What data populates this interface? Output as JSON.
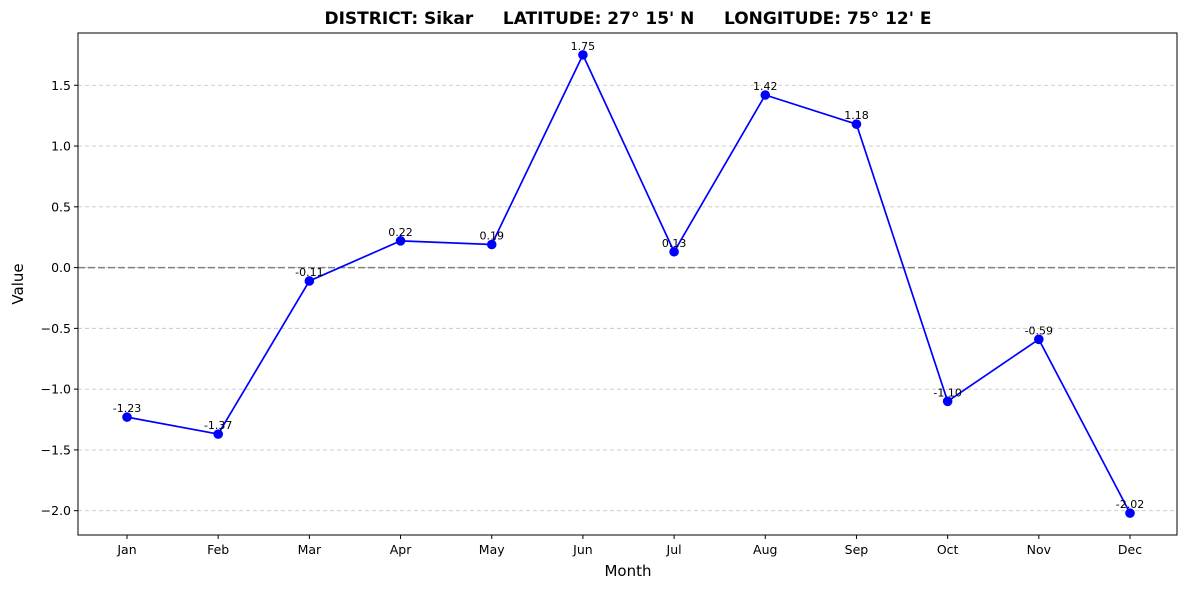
{
  "chart_data": {
    "type": "line",
    "title": "DISTRICT: Sikar     LATITUDE: 27° 15' N     LONGITUDE: 75° 12' E",
    "xlabel": "Month",
    "ylabel": "Value",
    "categories": [
      "Jan",
      "Feb",
      "Mar",
      "Apr",
      "May",
      "Jun",
      "Jul",
      "Aug",
      "Sep",
      "Oct",
      "Nov",
      "Dec"
    ],
    "values": [
      -1.23,
      -1.37,
      -0.11,
      0.22,
      0.19,
      1.75,
      0.13,
      1.42,
      1.18,
      -1.1,
      -0.59,
      -2.02
    ],
    "data_labels": [
      "-1.23",
      "-1.37",
      "-0.11",
      "0.22",
      "0.19",
      "1.75",
      "0.13",
      "1.42",
      "1.18",
      "-1.10",
      "-0.59",
      "-2.02"
    ],
    "ylim": [
      -2.2,
      1.93
    ],
    "yticks": [
      -2.0,
      -1.5,
      -1.0,
      -0.5,
      0.0,
      0.5,
      1.0,
      1.5
    ],
    "ytick_labels": [
      "−2.0",
      "−1.5",
      "−1.0",
      "−0.5",
      "0.0",
      "0.5",
      "1.0",
      "1.5"
    ],
    "grid": "horizontal dashed",
    "reference_line": 0,
    "colors": {
      "line": "#0000ff",
      "marker": "#0000ff",
      "reference": "#808080",
      "grid": "#c8c8c8"
    }
  }
}
